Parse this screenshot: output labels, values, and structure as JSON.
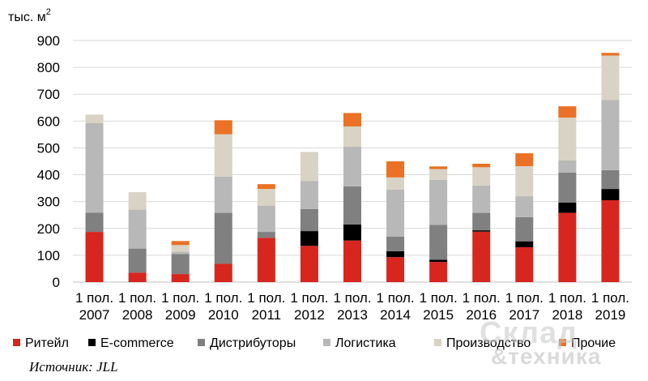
{
  "chart_data": {
    "type": "bar",
    "stacked": true,
    "unit_label": "тыс. м",
    "unit_superscript": "2",
    "categories": [
      [
        "1 пол.",
        "2007"
      ],
      [
        "1 пол.",
        "2008"
      ],
      [
        "1 пол.",
        "2009"
      ],
      [
        "1 пол.",
        "2010"
      ],
      [
        "1 пол.",
        "2011"
      ],
      [
        "1 пол.",
        "2012"
      ],
      [
        "1 пол.",
        "2013"
      ],
      [
        "1 пол.",
        "2014"
      ],
      [
        "1 пол.",
        "2015"
      ],
      [
        "1 пол.",
        "2016"
      ],
      [
        "1 пол.",
        "2017"
      ],
      [
        "1 пол.",
        "2018"
      ],
      [
        "1 пол.",
        "2019"
      ]
    ],
    "ylim": [
      0,
      900
    ],
    "yticks": [
      "0",
      "100",
      "200",
      "300",
      "400",
      "500",
      "600",
      "700",
      "800",
      "900"
    ],
    "grid": true,
    "legend_position": "bottom",
    "series": [
      {
        "name": "Ритейл",
        "color": "#d7261e",
        "values": [
          187,
          35,
          30,
          68,
          165,
          135,
          155,
          93,
          75,
          188,
          130,
          258,
          305
        ]
      },
      {
        "name": "E-commerce",
        "color": "#000000",
        "values": [
          0,
          0,
          0,
          0,
          0,
          55,
          60,
          22,
          8,
          5,
          22,
          38,
          42
        ]
      },
      {
        "name": "Дистрибуторы",
        "color": "#808080",
        "values": [
          72,
          90,
          75,
          190,
          22,
          82,
          142,
          55,
          130,
          65,
          90,
          112,
          70
        ]
      },
      {
        "name": "Логистика",
        "color": "#b8b8b8",
        "values": [
          333,
          145,
          8,
          135,
          98,
          105,
          148,
          175,
          168,
          102,
          78,
          45,
          262
        ]
      },
      {
        "name": "Производство",
        "color": "#d8d3c4",
        "values": [
          32,
          65,
          25,
          158,
          62,
          108,
          75,
          45,
          40,
          68,
          112,
          160,
          165
        ]
      },
      {
        "name": "Прочие",
        "color": "#ea7125",
        "values": [
          0,
          0,
          15,
          52,
          18,
          0,
          50,
          60,
          10,
          13,
          48,
          42,
          10
        ]
      }
    ]
  },
  "source": "Источник: JLL",
  "watermark": {
    "line1": "Склад",
    "line2": "&техника"
  }
}
